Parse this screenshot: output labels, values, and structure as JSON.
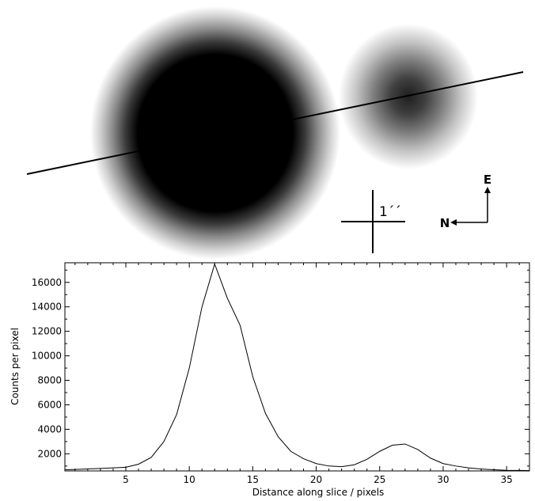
{
  "image_panel": {
    "scale_label": "1´´",
    "compass": {
      "east": "E",
      "north": "N"
    }
  },
  "chart_data": {
    "type": "line",
    "xlabel": "Distance along slice / pixels",
    "ylabel": "Counts per pixel",
    "xlim": [
      0.2,
      36.8
    ],
    "ylim": [
      600,
      17600
    ],
    "x_ticks": [
      5,
      10,
      15,
      20,
      25,
      30,
      35
    ],
    "y_ticks": [
      2000,
      4000,
      6000,
      8000,
      10000,
      12000,
      14000,
      16000
    ],
    "series": [
      {
        "x": [
          0.2,
          1,
          2,
          3,
          4,
          5,
          6,
          7,
          8,
          9,
          10,
          11,
          12,
          13,
          14,
          15,
          16,
          17,
          18,
          19,
          20,
          21,
          22,
          23,
          24,
          25,
          26,
          27,
          28,
          29,
          30,
          31,
          32,
          33,
          34,
          35,
          36,
          36.8
        ],
        "values": [
          700,
          720,
          760,
          800,
          850,
          900,
          1150,
          1700,
          3000,
          5200,
          9000,
          14000,
          17500,
          14700,
          12500,
          8300,
          5300,
          3400,
          2200,
          1600,
          1200,
          1000,
          950,
          1100,
          1550,
          2200,
          2700,
          2800,
          2350,
          1650,
          1200,
          1000,
          850,
          750,
          700,
          650,
          640,
          630
        ]
      }
    ]
  }
}
